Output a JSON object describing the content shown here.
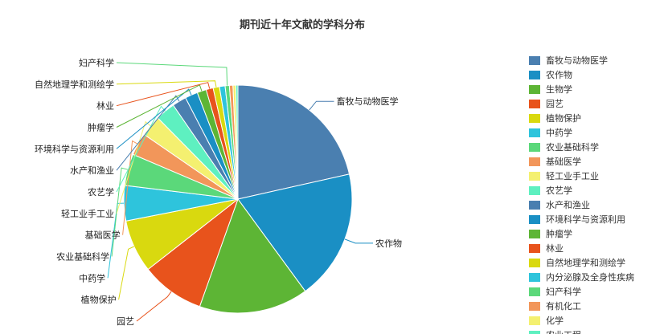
{
  "chart_data": {
    "type": "pie",
    "title": "期刊近十年文献的学科分布",
    "slices": [
      {
        "label": "畜牧与动物医学",
        "value": 21.5,
        "color": "#4a7fb0"
      },
      {
        "label": "农作物",
        "value": 18.5,
        "color": "#1a8fc4"
      },
      {
        "label": "生物学",
        "value": 15.5,
        "color": "#5db535"
      },
      {
        "label": "园艺",
        "value": 9.0,
        "color": "#e8531c"
      },
      {
        "label": "植物保护",
        "value": 7.5,
        "color": "#d9d90f"
      },
      {
        "label": "中药学",
        "value": 5.0,
        "color": "#2ec4dc"
      },
      {
        "label": "农业基础科学",
        "value": 4.5,
        "color": "#5bd87a"
      },
      {
        "label": "基础医学",
        "value": 3.2,
        "color": "#f2965a"
      },
      {
        "label": "轻工业手工业",
        "value": 3.0,
        "color": "#f4f070"
      },
      {
        "label": "农艺学",
        "value": 2.8,
        "color": "#5ef0c0"
      },
      {
        "label": "水产和渔业",
        "value": 2.0,
        "color": "#4a7fb0"
      },
      {
        "label": "环境科学与资源利用",
        "value": 1.8,
        "color": "#1a8fc4"
      },
      {
        "label": "肿瘤学",
        "value": 1.3,
        "color": "#5db535"
      },
      {
        "label": "林业",
        "value": 1.0,
        "color": "#e8531c"
      },
      {
        "label": "自然地理学和测绘学",
        "value": 0.9,
        "color": "#d9d90f"
      },
      {
        "label": "内分泌腺及全身性疾病",
        "value": 0.8,
        "color": "#2ec4dc"
      },
      {
        "label": "妇产科学",
        "value": 0.6,
        "color": "#5bd87a"
      },
      {
        "label": "有机化工",
        "value": 0.5,
        "color": "#f2965a"
      },
      {
        "label": "化学",
        "value": 0.4,
        "color": "#f4f070"
      },
      {
        "label": "农业工程",
        "value": 0.3,
        "color": "#5ef0c0"
      }
    ],
    "pie_labels": [
      "畜牧与动物医学",
      "农作物",
      "园艺",
      "植物保护",
      "中药学",
      "农业基础科学",
      "基础医学",
      "轻工业手工业",
      "农艺学",
      "水产和渔业",
      "环境科学与资源利用",
      "肿瘤学",
      "林业",
      "自然地理学和测绘学",
      "妇产科学"
    ],
    "legend": {
      "placement": "right",
      "visible_items": [
        "畜牧与动物医学",
        "农作物",
        "生物学",
        "园艺",
        "植物保护",
        "中药学",
        "农业基础科学",
        "基础医学",
        "轻工业手工业",
        "农艺学",
        "水产和渔业",
        "环境科学与资源利用",
        "肿瘤学",
        "林业",
        "自然地理学和测绘学",
        "内分泌腺及全身性疾病",
        "妇产科学",
        "有机化工",
        "化学",
        "农业工程"
      ]
    }
  }
}
